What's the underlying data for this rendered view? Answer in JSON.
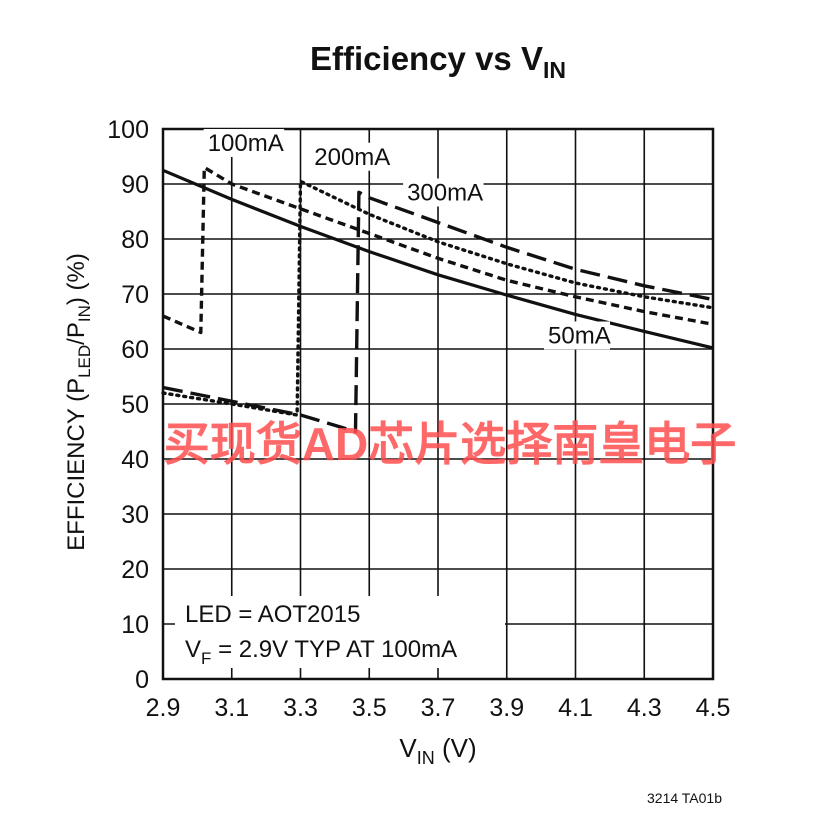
{
  "chart_data": {
    "type": "line",
    "title": "Efficiency vs V",
    "title_sub": "IN",
    "xlabel": "V",
    "xlabel_sub": "IN",
    "xlabel_unit": " (V)",
    "ylabel_parts": [
      "EFFICIENCY (P",
      "LED",
      "/P",
      "IN",
      ") (%)"
    ],
    "xlim": [
      2.9,
      4.5
    ],
    "ylim": [
      0,
      100
    ],
    "x_ticks": [
      "2.9",
      "3.1",
      "3.3",
      "3.5",
      "3.7",
      "3.9",
      "4.1",
      "4.3",
      "4.5"
    ],
    "y_ticks": [
      "0",
      "10",
      "20",
      "30",
      "40",
      "50",
      "60",
      "70",
      "80",
      "90",
      "100"
    ],
    "grid": true,
    "annotation_lines": [
      {
        "text": "LED = AOT2015",
        "sub": ""
      },
      {
        "text": "V",
        "sub": "F",
        "rest": " = 2.9V TYP AT 100mA"
      }
    ],
    "figure_id": "3214 TA01b",
    "watermark": "买现货AD芯片选择南皇电子",
    "series": [
      {
        "name": "50mA",
        "style": "solid",
        "points": [
          [
            2.9,
            92.5
          ],
          [
            3.1,
            87.2
          ],
          [
            3.3,
            82.3
          ],
          [
            3.5,
            77.7
          ],
          [
            3.7,
            73.5
          ],
          [
            3.9,
            69.8
          ],
          [
            4.1,
            66.3
          ],
          [
            4.3,
            63.2
          ],
          [
            4.5,
            60.2
          ]
        ]
      },
      {
        "name": "100mA",
        "style": "short-dash",
        "points": [
          [
            2.9,
            66
          ],
          [
            3.01,
            63
          ],
          [
            3.02,
            93
          ],
          [
            3.1,
            90
          ],
          [
            3.3,
            85.5
          ],
          [
            3.5,
            81
          ],
          [
            3.7,
            76.5
          ],
          [
            3.9,
            72.5
          ],
          [
            4.1,
            69.5
          ],
          [
            4.3,
            66.8
          ],
          [
            4.5,
            64.5
          ]
        ]
      },
      {
        "name": "200mA",
        "style": "dotted",
        "points": [
          [
            2.9,
            52
          ],
          [
            3.1,
            50
          ],
          [
            3.29,
            48
          ],
          [
            3.3,
            90.5
          ],
          [
            3.5,
            84.5
          ],
          [
            3.7,
            79.5
          ],
          [
            3.9,
            75.5
          ],
          [
            4.1,
            72
          ],
          [
            4.3,
            69.5
          ],
          [
            4.5,
            67.5
          ]
        ]
      },
      {
        "name": "300mA",
        "style": "long-dash",
        "points": [
          [
            2.9,
            53
          ],
          [
            3.1,
            50.5
          ],
          [
            3.3,
            48
          ],
          [
            3.46,
            45
          ],
          [
            3.47,
            88.5
          ],
          [
            3.5,
            87.5
          ],
          [
            3.7,
            83
          ],
          [
            3.9,
            78.5
          ],
          [
            4.1,
            74.5
          ],
          [
            4.3,
            71.5
          ],
          [
            4.5,
            69
          ]
        ]
      }
    ],
    "series_label_positions": [
      {
        "name": "50mA",
        "near_x": 4.02,
        "near_y": 61
      },
      {
        "name": "100mA",
        "near_x": 3.03,
        "near_y": 96
      },
      {
        "name": "200mA",
        "near_x": 3.34,
        "near_y": 93.5
      },
      {
        "name": "300mA",
        "near_x": 3.61,
        "near_y": 87
      }
    ]
  }
}
